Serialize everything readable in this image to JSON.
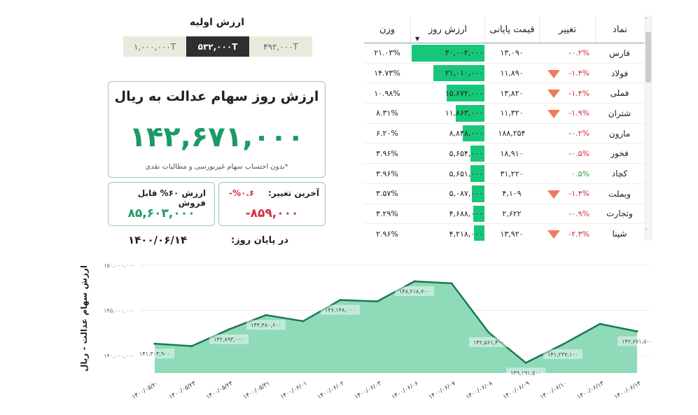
{
  "initial_value": {
    "title": "ارزش اولیه",
    "options": [
      "۱,۰۰۰,۰۰۰T",
      "۵۳۲,۰۰۰T",
      "۴۹۲,۰۰۰T"
    ],
    "selected": 1
  },
  "main": {
    "title": "ارزش روز سهام عدالت به ریال",
    "value": "۱۴۲,۶۷۱,۰۰۰",
    "note": "*بدون احتساب سهام غیربورسی و مطالبات نقدی"
  },
  "sellable": {
    "title": "ارزش ۶۰% قابل فروش",
    "value": "۸۵,۶۰۳,۰۰۰"
  },
  "last_change": {
    "title": "آخرین تغییر:",
    "percent": "%۰.۶-",
    "value": "-۸۵۹,۰۰۰"
  },
  "end_of_day": {
    "label": "در پایان روز:",
    "date": "۱۴۰۰/۰۶/۱۴"
  },
  "colors": {
    "green": "#1b9a64",
    "red": "#d03040",
    "bar": "#16c77a",
    "area": "#8fdab9",
    "line": "#1a7a52"
  },
  "table": {
    "headers": {
      "symbol": "نماد",
      "change": "تغییر",
      "price": "قیمت پایانی",
      "value": "ارزش روز",
      "weight": "وزن"
    },
    "sorted_by": "value",
    "rows": [
      {
        "symbol": "فارس",
        "change": "-۰.۲%",
        "down_arrow": false,
        "price": "۱۳,۰۹۰",
        "value": "۳۰,۰۰۲,۰۰۰",
        "value_num": 30002000,
        "weight": "۲۱.۰۳%"
      },
      {
        "symbol": "فولاد",
        "change": "-۱.۴%",
        "down_arrow": true,
        "price": "۱۱,۸۹۰",
        "value": "۲۱,۰۱۰,۰۰۰",
        "value_num": 21010000,
        "weight": "۱۴.۷۳%"
      },
      {
        "symbol": "فملی",
        "change": "-۱.۴%",
        "down_arrow": true,
        "price": "۱۳,۸۲۰",
        "value": "۱۵,۶۷۲,۰۰۰",
        "value_num": 15672000,
        "weight": "۱۰.۹۸%"
      },
      {
        "symbol": "شتران",
        "change": "-۱.۹%",
        "down_arrow": true,
        "price": "۱۱,۳۲۰",
        "value": "۱۱,۸۶۳,۰۰۰",
        "value_num": 11863000,
        "weight": "۸.۳۱%"
      },
      {
        "symbol": "مارون",
        "change": "-۰.۲%",
        "down_arrow": false,
        "price": "۱۸۸,۲۵۴",
        "value": "۸,۸۴۸,۰۰۰",
        "value_num": 8848000,
        "weight": "۶.۲۰%"
      },
      {
        "symbol": "فخوز",
        "change": "-۰.۵%",
        "down_arrow": false,
        "price": "۱۸,۹۱۰",
        "value": "۵,۶۵۴,۰۰۰",
        "value_num": 5654000,
        "weight": "۳.۹۶%"
      },
      {
        "symbol": "کچاد",
        "change": "۰.۵%",
        "down_arrow": false,
        "positive": true,
        "price": "۳۱,۲۲۰",
        "value": "۵,۶۵۱,۰۰۰",
        "value_num": 5651000,
        "weight": "۳.۹۶%"
      },
      {
        "symbol": "وبملت",
        "change": "-۱.۴%",
        "down_arrow": true,
        "price": "۴,۱۰۹",
        "value": "۵,۰۸۷,۰۰۰",
        "value_num": 5087000,
        "weight": "۳.۵۷%"
      },
      {
        "symbol": "وتجارت",
        "change": "-۰.۹%",
        "down_arrow": false,
        "price": "۲,۶۲۲",
        "value": "۴,۶۸۸,۰۰۰",
        "value_num": 4688000,
        "weight": "۳.۲۹%"
      },
      {
        "symbol": "شپنا",
        "change": "-۲.۳%",
        "down_arrow": true,
        "price": "۱۳,۹۲۰",
        "value": "۴,۲۱۸,۰۰۰",
        "value_num": 4218000,
        "weight": "۲.۹۶%"
      }
    ]
  },
  "chart_data": {
    "type": "area",
    "ylabel": "ارزش سهام عدالت - ریال",
    "ylim": [
      138000000,
      150000000
    ],
    "yticks": [
      140000000,
      145000000,
      150000000
    ],
    "ytick_labels": [
      "۱۴۰,۰۰۰,۰۰۰",
      "۱۴۵,۰۰۰,۰۰۰",
      "۱۵۰,۰۰۰,۰۰۰"
    ],
    "grid": true,
    "x": [
      "۱۴۰۰/۰۵/۲۰",
      "۱۴۰۰/۰۵/۲۳",
      "۱۴۰۰/۰۵/۲۴",
      "۱۴۰۰/۰۵/۳۱",
      "۱۴۰۰/۰۶/۰۱",
      "۱۴۰۰/۰۶/۰۲",
      "۱۴۰۰/۰۶/۰۳",
      "۱۴۰۰/۰۶/۰۶",
      "۱۴۰۰/۰۶/۰۷",
      "۱۴۰۰/۰۶/۰۸",
      "۱۴۰۰/۰۶/۰۹",
      "۱۴۰۰/۰۶/۱۰",
      "۱۴۰۰/۰۶/۱۳",
      "۱۴۰۰/۰۶/۱۴"
    ],
    "values": [
      141303900,
      141050000,
      142893000,
      144480600,
      143800000,
      146148000,
      146000000,
      148218700,
      148000000,
      142561400,
      139191500,
      141237100,
      143500000,
      142671500
    ],
    "data_labels": [
      "۱۴۱,۳۰۳,۹۰۰",
      null,
      "۱۴۲,۸۹۳,۰۰۰",
      "۱۴۴,۴۸۰,۶۰۰",
      null,
      "۱۴۶,۱۴۸,۰۰۰",
      null,
      "۱۴۸,۲۱۸,۷۰۰",
      null,
      "۱۴۲,۵۶۱,۴۰۰",
      "۱۳۹,۱۹۱,۵۰۰",
      "۱۴۱,۲۳۷,۱۰۰",
      null,
      "۱۴۲,۶۷۱,۵۰۰"
    ]
  }
}
